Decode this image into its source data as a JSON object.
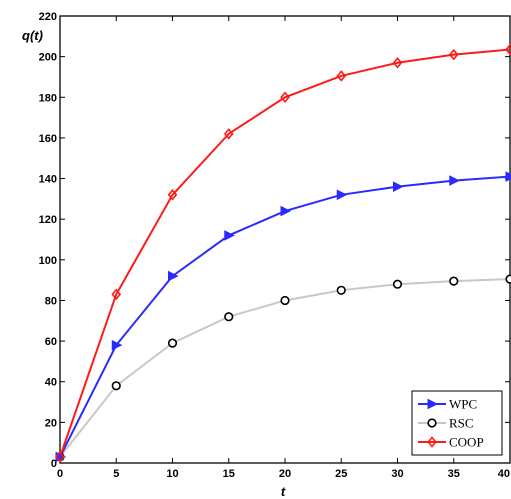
{
  "chart_data": {
    "type": "line",
    "title": "",
    "xlabel": "t",
    "ylabel": "q(t)",
    "xlim": [
      0,
      40
    ],
    "ylim": [
      0,
      220
    ],
    "xticks": [
      "0",
      "5",
      "10",
      "15",
      "20",
      "25",
      "30",
      "35",
      "40"
    ],
    "yticks": [
      "0",
      "20",
      "40",
      "60",
      "80",
      "100",
      "120",
      "140",
      "160",
      "180",
      "200",
      "220"
    ],
    "grid": false,
    "legend_position": "bottom-right",
    "x": [
      0,
      5,
      10,
      15,
      20,
      25,
      30,
      35,
      40
    ],
    "series": [
      {
        "name": "WPC",
        "color": "#2b2bff",
        "marker": "triangle-right",
        "values": [
          3,
          58,
          92,
          112,
          124,
          132,
          136,
          139,
          141
        ]
      },
      {
        "name": "RSC",
        "color": "#c8c8c8",
        "marker": "circle",
        "values": [
          3,
          38,
          59,
          72,
          80,
          85,
          88,
          89.5,
          90.5
        ]
      },
      {
        "name": "COOP",
        "color": "#ff1a1a",
        "marker": "diamond",
        "values": [
          3,
          83,
          132,
          162,
          180,
          190.5,
          197,
          201,
          203.5
        ]
      }
    ]
  }
}
